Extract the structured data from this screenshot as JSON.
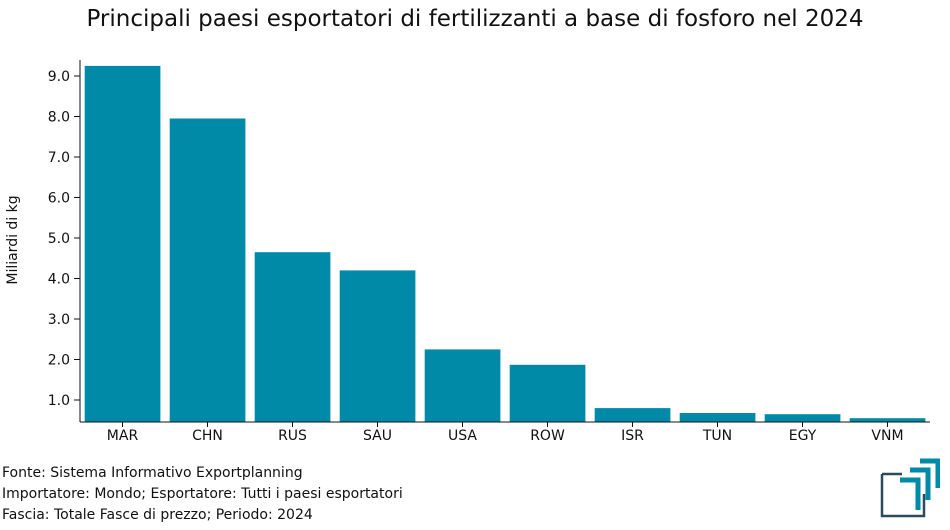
{
  "chart_data": {
    "type": "bar",
    "title": "Principali paesi esportatori di fertilizzanti a base di fosforo nel 2024",
    "ylabel": "Miliardi di kg",
    "xlabel": "",
    "categories": [
      "MAR",
      "CHN",
      "RUS",
      "SAU",
      "USA",
      "ROW",
      "ISR",
      "TUN",
      "EGY",
      "VNM"
    ],
    "values": [
      9.25,
      7.95,
      4.65,
      4.2,
      2.25,
      1.87,
      0.8,
      0.68,
      0.65,
      0.55
    ],
    "yticks": [
      "1.0",
      "2.0",
      "3.0",
      "4.0",
      "5.0",
      "6.0",
      "7.0",
      "8.0",
      "9.0"
    ],
    "ylim": [
      0.5,
      9.6
    ],
    "bar_color": "#008aa7",
    "grid": false
  },
  "footer": {
    "source": "Fonte: Sistema Informativo Exportplanning",
    "filter": "Importatore: Mondo; Esportatore: Tutti i paesi esportatori",
    "period": "Fascia: Totale Fasce di prezzo; Periodo: 2024"
  },
  "logo": {
    "icon": "exportplanning-logo-icon",
    "color": "#008aa7",
    "frame_color": "#2c4a5e"
  }
}
